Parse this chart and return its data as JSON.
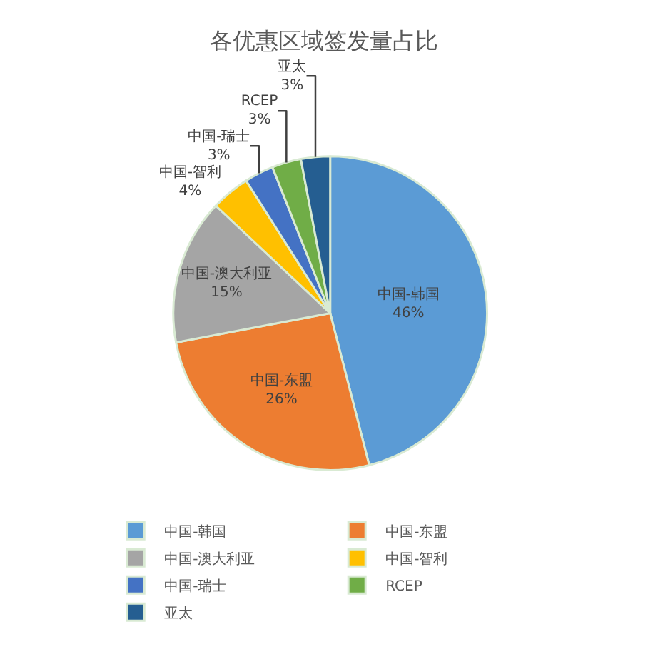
{
  "chart_data": {
    "type": "pie",
    "title": "各优惠区域签发量占比",
    "categories": [
      "中国-韩国",
      "中国-东盟",
      "中国-澳大利亚",
      "中国-智利",
      "中国-瑞士",
      "RCEP",
      "亚太"
    ],
    "values": [
      46,
      26,
      15,
      4,
      3,
      3,
      3
    ],
    "value_labels": [
      "46%",
      "26%",
      "15%",
      "4%",
      "3%",
      "3%",
      "3%"
    ],
    "colors": [
      "#5b9bd5",
      "#ed7d31",
      "#a5a5a5",
      "#ffc000",
      "#4472c4",
      "#70ad47",
      "#255e91"
    ],
    "legend": "bottom"
  }
}
